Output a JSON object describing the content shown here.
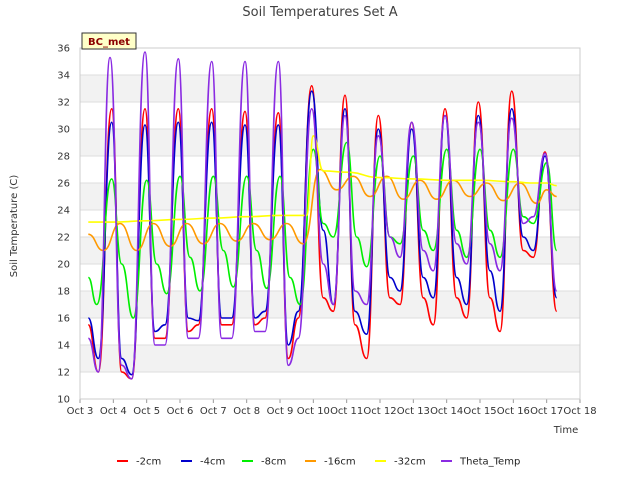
{
  "chart_data": {
    "type": "line",
    "title": "Soil Temperatures Set A",
    "xlabel": "Time",
    "ylabel": "Soil Temperature (C)",
    "badge": "BC_met",
    "ylim": [
      10,
      36
    ],
    "xlim": [
      3,
      18
    ],
    "yticks": [
      10,
      12,
      14,
      16,
      18,
      20,
      22,
      24,
      26,
      28,
      30,
      32,
      34,
      36
    ],
    "xticks": [
      {
        "v": 3,
        "label": "Oct 3"
      },
      {
        "v": 4,
        "label": "Oct 4"
      },
      {
        "v": 5,
        "label": "Oct 5"
      },
      {
        "v": 6,
        "label": "Oct 6"
      },
      {
        "v": 7,
        "label": "Oct 7"
      },
      {
        "v": 8,
        "label": "Oct 8"
      },
      {
        "v": 9,
        "label": "Oct 9"
      },
      {
        "v": 10,
        "label": "Oct 10"
      },
      {
        "v": 11,
        "label": "Oct 11"
      },
      {
        "v": 12,
        "label": "Oct 12"
      },
      {
        "v": 13,
        "label": "Oct 13"
      },
      {
        "v": 14,
        "label": "Oct 14"
      },
      {
        "v": 15,
        "label": "Oct 15"
      },
      {
        "v": 16,
        "label": "Oct 16"
      },
      {
        "v": 17,
        "label": "Oct 17"
      },
      {
        "v": 18,
        "label": "Oct 18"
      }
    ],
    "grid": "horizontal bands",
    "legend_position": "bottom",
    "series": [
      {
        "name": "-2cm",
        "color": "#ff0000",
        "x": [
          3.25,
          3.55,
          3.95,
          4.25,
          4.55,
          4.95,
          5.25,
          5.55,
          5.95,
          6.25,
          6.55,
          6.95,
          7.25,
          7.55,
          7.95,
          8.25,
          8.55,
          8.95,
          9.25,
          9.55,
          9.95,
          10.3,
          10.6,
          10.95,
          11.25,
          11.6,
          11.95,
          12.3,
          12.6,
          12.95,
          13.3,
          13.6,
          13.95,
          14.3,
          14.6,
          14.95,
          15.3,
          15.6,
          15.95,
          16.3,
          16.6,
          16.95,
          17.3
        ],
        "y": [
          15.5,
          12.0,
          31.5,
          12.0,
          11.5,
          31.5,
          14.5,
          14.5,
          31.5,
          15.0,
          15.5,
          31.5,
          15.5,
          15.5,
          31.3,
          15.5,
          16.0,
          31.2,
          13.0,
          16.0,
          33.2,
          17.5,
          16.5,
          32.5,
          15.5,
          13.0,
          31.0,
          17.5,
          17.0,
          30.5,
          17.5,
          15.5,
          31.5,
          17.5,
          16.0,
          32.0,
          17.5,
          15.0,
          32.8,
          21.0,
          20.5,
          28.3,
          16.5
        ]
      },
      {
        "name": "-4cm",
        "color": "#0000cc",
        "x": [
          3.25,
          3.55,
          3.95,
          4.25,
          4.55,
          4.95,
          5.25,
          5.55,
          5.95,
          6.25,
          6.55,
          6.95,
          7.25,
          7.55,
          7.95,
          8.25,
          8.55,
          8.95,
          9.25,
          9.55,
          9.95,
          10.3,
          10.6,
          10.95,
          11.25,
          11.6,
          11.95,
          12.3,
          12.6,
          12.95,
          13.3,
          13.6,
          13.95,
          14.3,
          14.6,
          14.95,
          15.3,
          15.6,
          15.95,
          16.3,
          16.6,
          16.95,
          17.3
        ],
        "y": [
          16.0,
          13.0,
          30.5,
          13.0,
          11.8,
          30.3,
          15.0,
          15.5,
          30.5,
          16.0,
          15.8,
          30.5,
          16.0,
          16.0,
          30.3,
          16.0,
          16.5,
          30.3,
          14.0,
          16.5,
          32.8,
          22.5,
          17.0,
          31.5,
          16.5,
          14.8,
          30.0,
          19.0,
          18.0,
          30.0,
          19.0,
          17.5,
          31.0,
          19.0,
          17.0,
          31.0,
          19.5,
          16.5,
          31.5,
          22.0,
          21.0,
          28.0,
          17.5
        ]
      },
      {
        "name": "-8cm",
        "color": "#00ee00",
        "x": [
          3.25,
          3.5,
          3.95,
          4.25,
          4.6,
          5.0,
          5.3,
          5.6,
          6.0,
          6.3,
          6.6,
          7.0,
          7.3,
          7.6,
          8.0,
          8.3,
          8.6,
          9.0,
          9.3,
          9.6,
          10.0,
          10.3,
          10.6,
          11.0,
          11.3,
          11.6,
          12.0,
          12.3,
          12.6,
          13.0,
          13.3,
          13.6,
          14.0,
          14.3,
          14.6,
          15.0,
          15.3,
          15.6,
          16.0,
          16.3,
          16.6,
          17.0,
          17.3
        ],
        "y": [
          19.0,
          17.0,
          26.3,
          20.0,
          16.0,
          26.2,
          20.0,
          17.8,
          26.5,
          20.5,
          18.0,
          26.5,
          21.0,
          18.3,
          26.5,
          21.0,
          18.2,
          26.5,
          19.0,
          17.0,
          28.5,
          23.0,
          22.0,
          29.0,
          22.0,
          19.8,
          28.0,
          22.0,
          21.5,
          28.0,
          22.5,
          21.0,
          28.5,
          22.5,
          20.5,
          28.5,
          22.5,
          20.5,
          28.5,
          23.5,
          23.0,
          27.5,
          21.0
        ]
      },
      {
        "name": "-16cm",
        "color": "#ff9900",
        "x": [
          3.25,
          3.7,
          4.2,
          4.7,
          5.2,
          5.7,
          6.2,
          6.7,
          7.2,
          7.7,
          8.2,
          8.7,
          9.2,
          9.7,
          10.2,
          10.7,
          11.2,
          11.7,
          12.2,
          12.7,
          13.2,
          13.7,
          14.2,
          14.7,
          15.2,
          15.7,
          16.2,
          16.7,
          17.0,
          17.3
        ],
        "y": [
          22.2,
          21.0,
          23.0,
          21.0,
          23.0,
          21.3,
          23.0,
          21.5,
          23.0,
          21.7,
          23.0,
          21.8,
          23.0,
          21.5,
          27.0,
          25.5,
          26.5,
          25.0,
          26.5,
          24.8,
          26.2,
          24.8,
          26.2,
          25.0,
          26.0,
          24.7,
          26.0,
          24.5,
          25.5,
          25.0
        ]
      },
      {
        "name": "-32cm",
        "color": "#ffff00",
        "x": [
          3.25,
          4.0,
          5.0,
          6.0,
          7.0,
          8.0,
          9.0,
          9.8,
          10.0,
          10.3,
          11.0,
          12.0,
          13.0,
          14.0,
          15.0,
          16.0,
          16.5,
          17.0,
          17.3
        ],
        "y": [
          23.1,
          23.1,
          23.2,
          23.3,
          23.4,
          23.5,
          23.6,
          23.6,
          29.5,
          26.9,
          26.8,
          26.4,
          26.3,
          26.2,
          26.2,
          26.1,
          26.0,
          26.0,
          25.8
        ]
      },
      {
        "name": "Theta_Temp",
        "color": "#8a2be2",
        "x": [
          3.25,
          3.55,
          3.9,
          4.25,
          4.55,
          4.95,
          5.25,
          5.55,
          5.95,
          6.25,
          6.55,
          6.95,
          7.25,
          7.55,
          7.95,
          8.25,
          8.55,
          8.95,
          9.25,
          9.55,
          9.95,
          10.3,
          10.6,
          10.95,
          11.25,
          11.6,
          11.95,
          12.3,
          12.6,
          12.95,
          13.3,
          13.6,
          13.95,
          14.3,
          14.6,
          14.95,
          15.3,
          15.6,
          15.95,
          16.3,
          16.6,
          16.95,
          17.3
        ],
        "y": [
          14.5,
          12.0,
          35.3,
          12.5,
          11.5,
          35.7,
          14.0,
          14.0,
          35.2,
          14.5,
          14.5,
          35.0,
          14.5,
          14.5,
          35.0,
          15.0,
          15.0,
          35.0,
          12.5,
          14.5,
          31.5,
          20.0,
          17.0,
          31.0,
          18.0,
          17.0,
          29.5,
          22.0,
          20.5,
          30.5,
          21.0,
          19.5,
          31.0,
          21.5,
          20.0,
          30.5,
          21.5,
          19.5,
          30.8,
          23.0,
          23.5,
          28.2,
          18.0
        ]
      }
    ]
  }
}
